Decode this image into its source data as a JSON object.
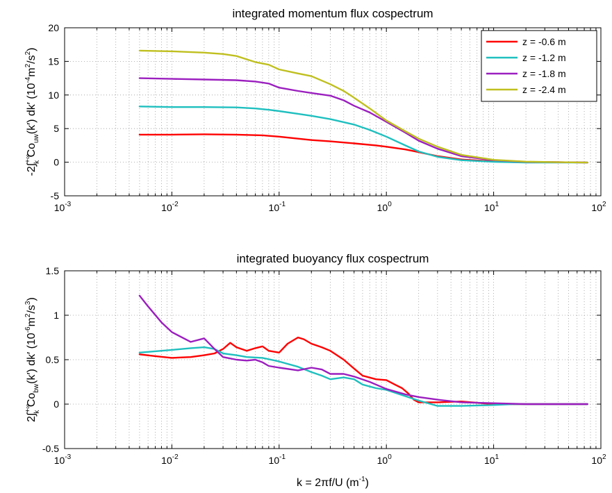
{
  "chart_data": [
    {
      "type": "line",
      "title": "integrated momentum flux cospectrum",
      "ylabel": "-2∫_k^{+∞} Co_uw(k′) dk′ (10^-4 m^2/s^2)",
      "xlabel": "",
      "xscale": "log",
      "xlim": [
        0.001,
        100
      ],
      "ylim": [
        -5,
        20
      ],
      "yticks": [
        "-5",
        "0",
        "5",
        "10",
        "15",
        "20"
      ],
      "xtick_bases": [
        "10",
        "10",
        "10",
        "10",
        "10",
        "10"
      ],
      "xtick_exps": [
        "-3",
        "-2",
        "-1",
        "0",
        "1",
        "2"
      ],
      "grid": true,
      "legend_position": "top-right",
      "series": [
        {
          "name": "z = -0.6 m",
          "color": "#ff0000",
          "points": [
            [
              0.005,
              4.1
            ],
            [
              0.01,
              4.1
            ],
            [
              0.02,
              4.15
            ],
            [
              0.04,
              4.1
            ],
            [
              0.07,
              4.0
            ],
            [
              0.1,
              3.8
            ],
            [
              0.15,
              3.5
            ],
            [
              0.2,
              3.3
            ],
            [
              0.3,
              3.1
            ],
            [
              0.5,
              2.8
            ],
            [
              0.8,
              2.5
            ],
            [
              1.0,
              2.3
            ],
            [
              1.5,
              1.9
            ],
            [
              2.0,
              1.5
            ],
            [
              3.0,
              0.9
            ],
            [
              5.0,
              0.4
            ],
            [
              10,
              0.12
            ],
            [
              20,
              0.03
            ],
            [
              40,
              0.0
            ],
            [
              75,
              -0.05
            ]
          ]
        },
        {
          "name": "z = -1.2 m",
          "color": "#1fbfbf",
          "points": [
            [
              0.005,
              8.3
            ],
            [
              0.01,
              8.2
            ],
            [
              0.02,
              8.2
            ],
            [
              0.04,
              8.15
            ],
            [
              0.06,
              8.0
            ],
            [
              0.08,
              7.8
            ],
            [
              0.1,
              7.6
            ],
            [
              0.15,
              7.2
            ],
            [
              0.2,
              6.9
            ],
            [
              0.3,
              6.4
            ],
            [
              0.5,
              5.6
            ],
            [
              0.7,
              4.8
            ],
            [
              1.0,
              3.8
            ],
            [
              1.5,
              2.5
            ],
            [
              2.0,
              1.6
            ],
            [
              3.0,
              0.8
            ],
            [
              5.0,
              0.3
            ],
            [
              10,
              0.05
            ],
            [
              20,
              -0.05
            ],
            [
              40,
              -0.05
            ],
            [
              75,
              -0.05
            ]
          ]
        },
        {
          "name": "z = -1.8 m",
          "color": "#9b1fbf",
          "points": [
            [
              0.005,
              12.5
            ],
            [
              0.01,
              12.4
            ],
            [
              0.02,
              12.3
            ],
            [
              0.04,
              12.2
            ],
            [
              0.06,
              12.0
            ],
            [
              0.08,
              11.7
            ],
            [
              0.1,
              11.1
            ],
            [
              0.15,
              10.6
            ],
            [
              0.2,
              10.3
            ],
            [
              0.3,
              9.9
            ],
            [
              0.4,
              9.2
            ],
            [
              0.5,
              8.4
            ],
            [
              0.7,
              7.4
            ],
            [
              1.0,
              6.0
            ],
            [
              1.5,
              4.4
            ],
            [
              2.0,
              3.2
            ],
            [
              3.0,
              2.0
            ],
            [
              5.0,
              0.9
            ],
            [
              10,
              0.3
            ],
            [
              20,
              0.05
            ],
            [
              40,
              0.0
            ],
            [
              75,
              -0.05
            ]
          ]
        },
        {
          "name": "z = -2.4 m",
          "color": "#bfbf1f",
          "points": [
            [
              0.005,
              16.6
            ],
            [
              0.01,
              16.5
            ],
            [
              0.02,
              16.3
            ],
            [
              0.03,
              16.1
            ],
            [
              0.04,
              15.8
            ],
            [
              0.05,
              15.3
            ],
            [
              0.06,
              14.9
            ],
            [
              0.08,
              14.5
            ],
            [
              0.1,
              13.8
            ],
            [
              0.15,
              13.2
            ],
            [
              0.2,
              12.8
            ],
            [
              0.3,
              11.6
            ],
            [
              0.4,
              10.6
            ],
            [
              0.5,
              9.6
            ],
            [
              0.7,
              8.0
            ],
            [
              1.0,
              6.2
            ],
            [
              1.5,
              4.6
            ],
            [
              2.0,
              3.5
            ],
            [
              3.0,
              2.3
            ],
            [
              5.0,
              1.1
            ],
            [
              10,
              0.35
            ],
            [
              20,
              0.08
            ],
            [
              40,
              0.0
            ],
            [
              75,
              -0.05
            ]
          ]
        }
      ]
    },
    {
      "type": "line",
      "title": "integrated buoyancy flux cospectrum",
      "ylabel": "2∫_k^{+∞} Co_bw(k′) dk′ (10^-6 m^2/s^3)",
      "xlabel": "k = 2πf/U (m^-1)",
      "xscale": "log",
      "xlim": [
        0.001,
        100
      ],
      "ylim": [
        -0.5,
        1.5
      ],
      "yticks": [
        "-0.5",
        "0",
        "0.5",
        "1",
        "1.5"
      ],
      "xtick_bases": [
        "10",
        "10",
        "10",
        "10",
        "10",
        "10"
      ],
      "xtick_exps": [
        "-3",
        "-2",
        "-1",
        "0",
        "1",
        "2"
      ],
      "grid": true,
      "series": [
        {
          "name": "z = -0.6 m",
          "color": "#ff0000",
          "points": [
            [
              0.005,
              0.56
            ],
            [
              0.007,
              0.54
            ],
            [
              0.01,
              0.52
            ],
            [
              0.015,
              0.53
            ],
            [
              0.02,
              0.55
            ],
            [
              0.025,
              0.57
            ],
            [
              0.03,
              0.62
            ],
            [
              0.035,
              0.69
            ],
            [
              0.04,
              0.64
            ],
            [
              0.05,
              0.6
            ],
            [
              0.06,
              0.63
            ],
            [
              0.07,
              0.65
            ],
            [
              0.08,
              0.6
            ],
            [
              0.1,
              0.58
            ],
            [
              0.12,
              0.68
            ],
            [
              0.15,
              0.75
            ],
            [
              0.17,
              0.73
            ],
            [
              0.2,
              0.68
            ],
            [
              0.25,
              0.64
            ],
            [
              0.3,
              0.6
            ],
            [
              0.4,
              0.5
            ],
            [
              0.5,
              0.4
            ],
            [
              0.6,
              0.32
            ],
            [
              0.8,
              0.28
            ],
            [
              1.0,
              0.27
            ],
            [
              1.2,
              0.22
            ],
            [
              1.4,
              0.18
            ],
            [
              1.6,
              0.12
            ],
            [
              1.8,
              0.05
            ],
            [
              2.0,
              0.02
            ],
            [
              3.0,
              0.02
            ],
            [
              5.0,
              0.03
            ],
            [
              10,
              0.0
            ],
            [
              20,
              0.0
            ],
            [
              75,
              0.0
            ]
          ]
        },
        {
          "name": "z = -1.2 m",
          "color": "#1fbfbf",
          "points": [
            [
              0.005,
              0.58
            ],
            [
              0.008,
              0.6
            ],
            [
              0.01,
              0.61
            ],
            [
              0.015,
              0.63
            ],
            [
              0.02,
              0.64
            ],
            [
              0.025,
              0.62
            ],
            [
              0.03,
              0.57
            ],
            [
              0.04,
              0.55
            ],
            [
              0.05,
              0.53
            ],
            [
              0.07,
              0.52
            ],
            [
              0.1,
              0.48
            ],
            [
              0.15,
              0.42
            ],
            [
              0.2,
              0.36
            ],
            [
              0.25,
              0.32
            ],
            [
              0.3,
              0.28
            ],
            [
              0.4,
              0.3
            ],
            [
              0.5,
              0.28
            ],
            [
              0.6,
              0.22
            ],
            [
              0.8,
              0.18
            ],
            [
              1.0,
              0.16
            ],
            [
              1.5,
              0.09
            ],
            [
              2.0,
              0.04
            ],
            [
              3.0,
              -0.02
            ],
            [
              5.0,
              -0.02
            ],
            [
              10,
              -0.01
            ],
            [
              15,
              0.0
            ],
            [
              20,
              0.0
            ],
            [
              75,
              0.0
            ]
          ]
        },
        {
          "name": "z = -1.8 m",
          "color": "#9b1fbf",
          "points": [
            [
              0.005,
              1.22
            ],
            [
              0.006,
              1.1
            ],
            [
              0.008,
              0.92
            ],
            [
              0.01,
              0.81
            ],
            [
              0.015,
              0.7
            ],
            [
              0.02,
              0.74
            ],
            [
              0.025,
              0.62
            ],
            [
              0.03,
              0.53
            ],
            [
              0.04,
              0.5
            ],
            [
              0.05,
              0.49
            ],
            [
              0.06,
              0.5
            ],
            [
              0.07,
              0.47
            ],
            [
              0.08,
              0.43
            ],
            [
              0.1,
              0.41
            ],
            [
              0.15,
              0.38
            ],
            [
              0.2,
              0.41
            ],
            [
              0.25,
              0.39
            ],
            [
              0.3,
              0.34
            ],
            [
              0.4,
              0.34
            ],
            [
              0.5,
              0.31
            ],
            [
              0.7,
              0.25
            ],
            [
              1.0,
              0.17
            ],
            [
              1.5,
              0.11
            ],
            [
              2.0,
              0.08
            ],
            [
              3.0,
              0.05
            ],
            [
              5.0,
              0.02
            ],
            [
              10,
              0.01
            ],
            [
              20,
              0.0
            ],
            [
              40,
              0.0
            ],
            [
              75,
              0.0
            ]
          ]
        }
      ]
    }
  ]
}
